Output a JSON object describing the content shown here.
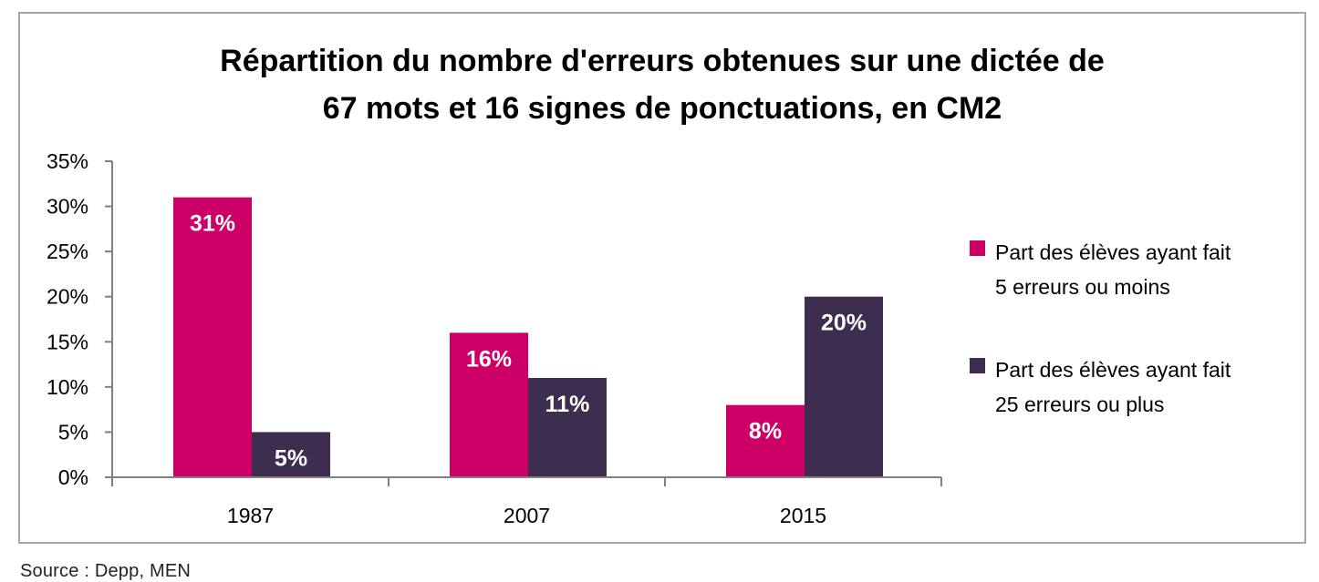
{
  "colors": {
    "series_1": "#cc0066",
    "series_2": "#3d2e4f",
    "axis": "#808080",
    "frame": "#a6a6a6",
    "text": "#000000",
    "data_label": "#ffffff"
  },
  "chart_data": {
    "type": "bar",
    "title_lines": [
      "Répartition du nombre d'erreurs obtenues sur une dictée de",
      "67 mots et 16 signes de ponctuations, en CM2"
    ],
    "categories": [
      "1987",
      "2007",
      "2015"
    ],
    "series": [
      {
        "name_lines": [
          "Part des élèves ayant fait",
          "5 erreurs ou moins"
        ],
        "values": [
          31,
          16,
          8
        ],
        "labels": [
          "31%",
          "16%",
          "8%"
        ]
      },
      {
        "name_lines": [
          "Part des élèves ayant fait",
          "25 erreurs ou plus"
        ],
        "values": [
          5,
          11,
          20
        ],
        "labels": [
          "5%",
          "11%",
          "20%"
        ]
      }
    ],
    "y_ticks": [
      0,
      5,
      10,
      15,
      20,
      25,
      30,
      35
    ],
    "y_tick_labels": [
      "0%",
      "5%",
      "10%",
      "15%",
      "20%",
      "25%",
      "30%",
      "35%"
    ],
    "ylim": [
      0,
      35
    ],
    "grid": false,
    "legend_position": "right"
  },
  "source": "Source : Depp, MEN"
}
